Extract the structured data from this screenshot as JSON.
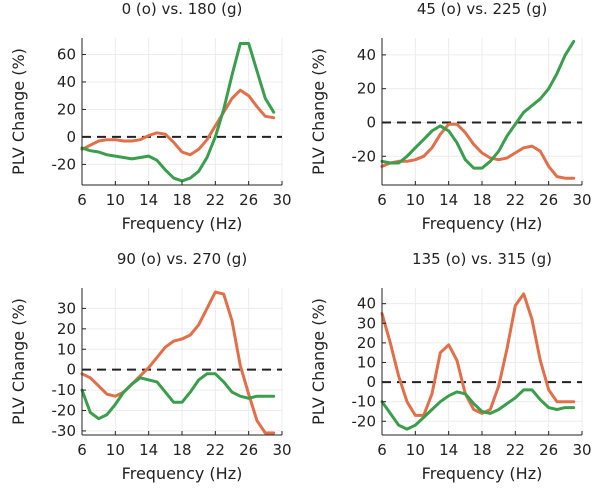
{
  "colors": {
    "o": "#e1704a",
    "g": "#3a9e4d",
    "reference": "#222222"
  },
  "chart_data": [
    {
      "type": "line",
      "title": "0 (o) vs. 180 (g)",
      "xlabel": "Frequency (Hz)",
      "ylabel": "PLV Change (%)",
      "xlim": [
        6,
        30
      ],
      "ylim": [
        -35,
        72
      ],
      "xticks": [
        6,
        10,
        14,
        18,
        22,
        26,
        30
      ],
      "yticks": [
        -20,
        0,
        20,
        40,
        60
      ],
      "reference_line": 0,
      "grid": true,
      "series": [
        {
          "key": "o",
          "x": [
            6,
            7,
            8,
            9,
            10,
            11,
            12,
            13,
            14,
            15,
            16,
            17,
            18,
            19,
            20,
            21,
            22,
            23,
            24,
            25,
            26,
            27,
            28,
            29
          ],
          "y": [
            -9,
            -6,
            -3,
            -2,
            -2,
            -3,
            -3,
            -2,
            1,
            3,
            2,
            -4,
            -11,
            -13,
            -9,
            -2,
            8,
            18,
            28,
            34,
            30,
            22,
            15,
            14
          ]
        },
        {
          "key": "g",
          "x": [
            6,
            7,
            8,
            9,
            10,
            11,
            12,
            13,
            14,
            15,
            16,
            17,
            18,
            19,
            20,
            21,
            22,
            23,
            24,
            25,
            26,
            27,
            28,
            29
          ],
          "y": [
            -8,
            -10,
            -11,
            -13,
            -14,
            -15,
            -16,
            -15,
            -14,
            -17,
            -24,
            -30,
            -32,
            -30,
            -25,
            -15,
            0,
            20,
            45,
            68,
            68,
            48,
            28,
            18
          ]
        }
      ]
    },
    {
      "type": "line",
      "title": "45 (o) vs. 225 (g)",
      "xlabel": "Frequency (Hz)",
      "ylabel": "PLV Change (%)",
      "xlim": [
        6,
        30
      ],
      "ylim": [
        -37,
        50
      ],
      "xticks": [
        6,
        10,
        14,
        18,
        22,
        26,
        30
      ],
      "yticks": [
        -20,
        0,
        20,
        40
      ],
      "reference_line": 0,
      "grid": true,
      "series": [
        {
          "key": "o",
          "x": [
            6,
            7,
            8,
            9,
            10,
            11,
            12,
            13,
            14,
            15,
            16,
            17,
            18,
            19,
            20,
            21,
            22,
            23,
            24,
            25,
            26,
            27,
            28,
            29
          ],
          "y": [
            -26,
            -24,
            -23,
            -23,
            -22,
            -20,
            -15,
            -7,
            -1,
            -1,
            -6,
            -13,
            -18,
            -21,
            -22,
            -21,
            -18,
            -15,
            -14,
            -17,
            -26,
            -32,
            -33,
            -33
          ]
        },
        {
          "key": "g",
          "x": [
            6,
            7,
            8,
            9,
            10,
            11,
            12,
            13,
            14,
            15,
            16,
            17,
            18,
            19,
            20,
            21,
            22,
            23,
            24,
            25,
            26,
            27,
            28,
            29
          ],
          "y": [
            -23,
            -24,
            -24,
            -20,
            -15,
            -10,
            -5,
            -2,
            -5,
            -12,
            -22,
            -27,
            -27,
            -23,
            -17,
            -8,
            -1,
            6,
            10,
            14,
            20,
            29,
            40,
            48
          ]
        }
      ]
    },
    {
      "type": "line",
      "title": "90 (o) vs. 270 (g)",
      "xlabel": "Frequency (Hz)",
      "ylabel": "PLV Change (%)",
      "xlim": [
        6,
        30
      ],
      "ylim": [
        -32,
        40
      ],
      "xticks": [
        6,
        10,
        14,
        18,
        22,
        26,
        30
      ],
      "yticks": [
        -30,
        -20,
        -10,
        0,
        10,
        20,
        30
      ],
      "reference_line": 0,
      "grid": true,
      "series": [
        {
          "key": "o",
          "x": [
            6,
            7,
            8,
            9,
            10,
            11,
            12,
            13,
            14,
            15,
            16,
            17,
            18,
            19,
            20,
            21,
            22,
            23,
            24,
            25,
            26,
            27,
            28,
            29
          ],
          "y": [
            -2,
            -4,
            -8,
            -12,
            -13,
            -11,
            -7,
            -3,
            1,
            6,
            11,
            14,
            15,
            17,
            22,
            30,
            38,
            37,
            24,
            2,
            -12,
            -25,
            -31,
            -31
          ]
        },
        {
          "key": "g",
          "x": [
            6,
            7,
            8,
            9,
            10,
            11,
            12,
            13,
            14,
            15,
            16,
            17,
            18,
            19,
            20,
            21,
            22,
            23,
            24,
            25,
            26,
            27,
            28,
            29
          ],
          "y": [
            -10,
            -21,
            -24,
            -22,
            -17,
            -11,
            -7,
            -4,
            -5,
            -6,
            -11,
            -16,
            -16,
            -11,
            -5,
            -2,
            -2,
            -6,
            -11,
            -13,
            -14,
            -13,
            -13,
            -13
          ]
        }
      ]
    },
    {
      "type": "line",
      "title": "135 (o) vs. 315 (g)",
      "xlabel": "Frequency (Hz)",
      "ylabel": "PLV Change (%)",
      "xlim": [
        6,
        30
      ],
      "ylim": [
        -27,
        48
      ],
      "xticks": [
        6,
        10,
        14,
        18,
        22,
        26,
        30
      ],
      "yticks": [
        -20,
        -10,
        0,
        10,
        20,
        30,
        40
      ],
      "reference_line": 0,
      "grid": true,
      "series": [
        {
          "key": "o",
          "x": [
            6,
            7,
            8,
            9,
            10,
            11,
            12,
            13,
            14,
            15,
            16,
            17,
            18,
            19,
            20,
            21,
            22,
            23,
            24,
            25,
            26,
            27,
            28,
            29
          ],
          "y": [
            35,
            20,
            3,
            -10,
            -17,
            -17,
            -6,
            15,
            19,
            11,
            -6,
            -14,
            -16,
            -14,
            -2,
            17,
            39,
            45,
            32,
            11,
            -4,
            -10,
            -10,
            -10
          ]
        },
        {
          "key": "g",
          "x": [
            6,
            7,
            8,
            9,
            10,
            11,
            12,
            13,
            14,
            15,
            16,
            17,
            18,
            19,
            20,
            21,
            22,
            23,
            24,
            25,
            26,
            27,
            28,
            29
          ],
          "y": [
            -10,
            -16,
            -22,
            -24,
            -22,
            -18,
            -14,
            -10,
            -7,
            -5,
            -6,
            -11,
            -15,
            -16,
            -14,
            -11,
            -8,
            -4,
            -4,
            -9,
            -13,
            -14,
            -13,
            -13
          ]
        }
      ]
    }
  ]
}
